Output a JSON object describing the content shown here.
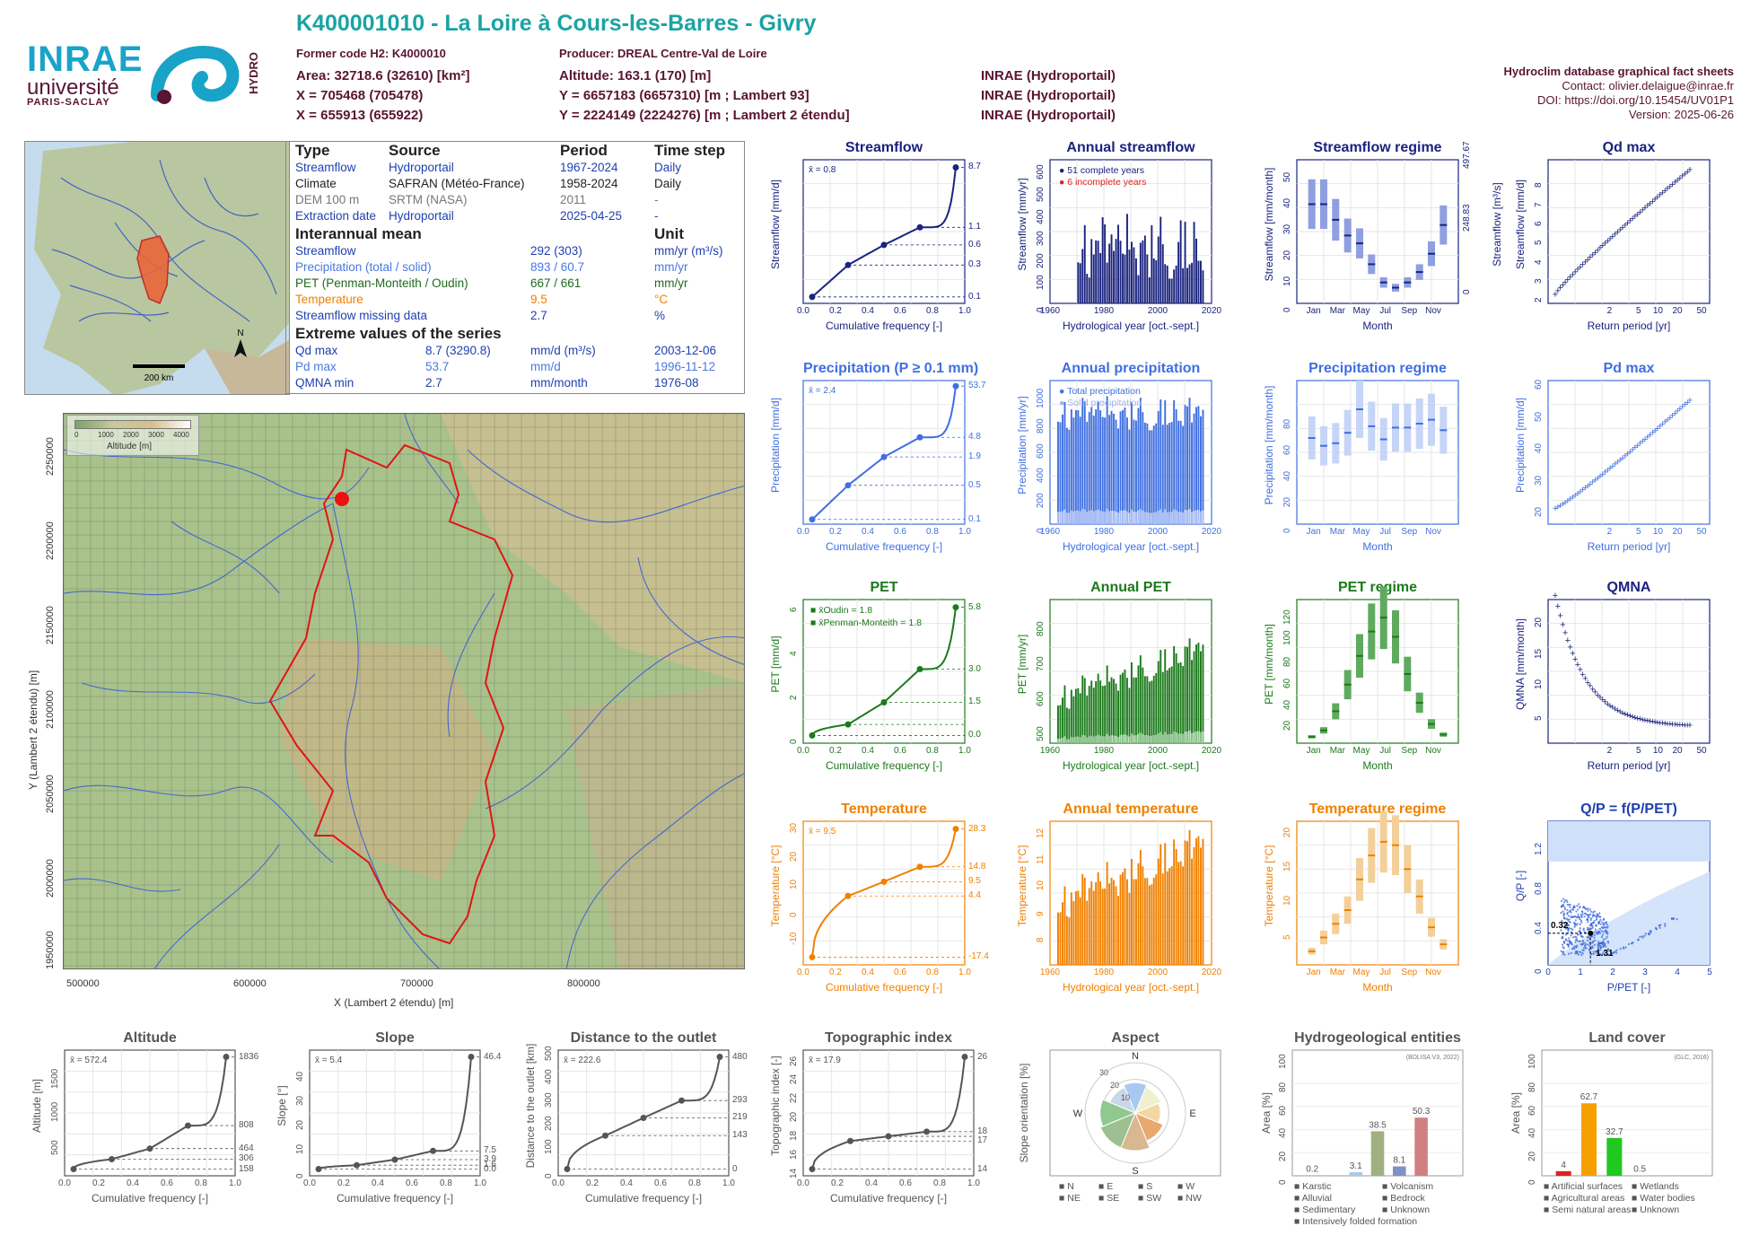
{
  "header": {
    "title": "K400001010 - La Loire à Cours-les-Barres - Givry",
    "former_code": "Former code H2: K4000010",
    "producer": "Producer: DREAL Centre-Val de Loire",
    "area": "Area: 32718.6 (32610) [km²]",
    "x1": "X = 705468 (705478)",
    "x2": "X = 655913 (655922)",
    "altitude": "Altitude: 163.1 (170) [m]",
    "y1": "Y = 6657183 (6657310) [m ; Lambert 93]",
    "y2": "Y = 2224149 (2224276) [m ; Lambert 2 étendu]",
    "src1": "INRAE (Hydroportail)",
    "src2": "INRAE (Hydroportail)",
    "src3": "INRAE (Hydroportail)",
    "db_title": "Hydroclim database graphical fact sheets",
    "contact": "Contact: olivier.delaigue@inrae.fr",
    "doi": "DOI: https://doi.org/10.15454/UV01P1",
    "version": "Version: 2025-06-26"
  },
  "logos": {
    "inrae": "INRAE",
    "universite": "université",
    "paris_saclay": "PARIS-SACLAY",
    "hydro": "HYDRO"
  },
  "minimap": {
    "scale": "200 km",
    "north": "N"
  },
  "info": {
    "h_type": "Type",
    "h_source": "Source",
    "h_period": "Period",
    "h_step": "Time step",
    "rows": [
      {
        "type": "Streamflow",
        "source": "Hydroportail",
        "period": "1967-2024",
        "step": "Daily"
      },
      {
        "type": "Climate",
        "source": "SAFRAN (Météo-France)",
        "period": "1958-2024",
        "step": "Daily"
      },
      {
        "type": "DEM 100 m",
        "source": "SRTM (NASA)",
        "period": "2011",
        "step": "-"
      },
      {
        "type": "Extraction date",
        "source": "Hydroportail",
        "period": "2025-04-25",
        "step": "-"
      }
    ],
    "h_mean": "Interannual mean",
    "h_unit": "Unit",
    "means": [
      {
        "name": "Streamflow",
        "value": "292 (303)",
        "unit": "mm/yr (m³/s)"
      },
      {
        "name": "Precipitation (total / solid)",
        "value": "893 / 60.7",
        "unit": "mm/yr"
      },
      {
        "name": "PET (Penman-Monteith / Oudin)",
        "value": "667 / 661",
        "unit": "mm/yr"
      },
      {
        "name": "Temperature",
        "value": "9.5",
        "unit": "°C"
      },
      {
        "name": "Streamflow missing data",
        "value": "2.7",
        "unit": "%"
      }
    ],
    "h_extreme": "Extreme values of the series",
    "extremes": [
      {
        "name": "Qd max",
        "value": "8.7 (3290.8)",
        "unit": "mm/d (m³/s)",
        "date": "2003-12-06"
      },
      {
        "name": "Pd max",
        "value": "53.7",
        "unit": "mm/d",
        "date": "1996-11-12"
      },
      {
        "name": "QMNA min",
        "value": "2.7",
        "unit": "mm/month",
        "date": "1976-08"
      }
    ]
  },
  "bigmap": {
    "legend_title": "Altitude [m]",
    "legend_ticks": [
      "0",
      "1000",
      "2000",
      "3000",
      "4000"
    ],
    "xlabel": "X (Lambert 2 étendu) [m]",
    "ylabel": "Y (Lambert 2 étendu) [m]",
    "xticks": [
      "500000",
      "600000",
      "700000",
      "800000"
    ],
    "yticks": [
      "2250000",
      "2200000",
      "2150000",
      "2100000",
      "2050000",
      "2000000",
      "1950000"
    ]
  },
  "colors": {
    "streamflow": "#1a237e",
    "precip": "#3f6fe0",
    "pet": "#1b7a1b",
    "temp": "#f08000",
    "grey": "#555555",
    "qp": "#1f3fb0"
  },
  "chart_data": [
    {
      "id": "streamflow_cdf",
      "type": "line",
      "title": "Streamflow",
      "xlabel": "Cumulative frequency [-]",
      "ylabel": "Streamflow [mm/d]",
      "mean_label": "x̄ = 0.8",
      "yscale": "log",
      "x": [
        0,
        0.25,
        0.5,
        0.75,
        1
      ],
      "y": [
        0.1,
        0.3,
        0.6,
        1.1,
        8.7
      ],
      "right_ticks": [
        "8.7",
        "1.1",
        "0.6",
        "0.3",
        "0.1"
      ]
    },
    {
      "id": "annual_streamflow",
      "type": "bar",
      "title": "Annual streamflow",
      "xlabel": "Hydrological year [oct.-sept.]",
      "ylabel": "Streamflow [mm/yr]",
      "legend": [
        "51 complete years",
        "6 incomplete years"
      ],
      "xticks": [
        "1960",
        "1980",
        "2000",
        "2020"
      ],
      "yticks": [
        "0",
        "100",
        "200",
        "300",
        "400",
        "500",
        "600"
      ]
    },
    {
      "id": "streamflow_regime",
      "type": "bar",
      "title": "Streamflow regime",
      "xlabel": "Month",
      "ylabel": "Streamflow [mm/month]",
      "right_ylabel": "Streamflow [m³/s]",
      "right_ticks": [
        "497.67",
        "248.83",
        "0"
      ],
      "categories": [
        "Jan",
        "Feb",
        "Mar",
        "Apr",
        "May",
        "Jun",
        "Jul",
        "Aug",
        "Sep",
        "Oct",
        "Nov",
        "Dec"
      ],
      "values": [
        38,
        38,
        32,
        26,
        23,
        15,
        8,
        6,
        8,
        12,
        19,
        30
      ],
      "yticks": [
        "0",
        "10",
        "20",
        "30",
        "40",
        "50"
      ]
    },
    {
      "id": "qd_max",
      "type": "scatter",
      "title": "Qd max",
      "xlabel": "Return period [yr]",
      "ylabel": "Streamflow [mm/d]",
      "xticks": [
        "2",
        "5",
        "10",
        "20",
        "50"
      ],
      "yticks": [
        "2",
        "3",
        "4",
        "5",
        "6",
        "7",
        "8"
      ]
    },
    {
      "id": "precip_cdf",
      "type": "line",
      "title": "Precipitation (P ≥ 0.1 mm)",
      "xlabel": "Cumulative frequency [-]",
      "ylabel": "Precipitation [mm/d]",
      "mean_label": "x̄ = 2.4",
      "yscale": "log",
      "x": [
        0,
        0.25,
        0.5,
        0.75,
        1
      ],
      "y": [
        0.1,
        0.5,
        1.9,
        4.8,
        53.7
      ],
      "right_ticks": [
        "53.7",
        "4.8",
        "1.9",
        "0.5",
        "0.1"
      ]
    },
    {
      "id": "annual_precip",
      "type": "bar",
      "title": "Annual precipitation",
      "xlabel": "Hydrological year [oct.-sept.]",
      "ylabel": "Precipitation [mm/yr]",
      "legend": [
        "Total precipitation",
        "Solid precipitation"
      ],
      "xticks": [
        "1960",
        "1980",
        "2000",
        "2020"
      ],
      "yticks": [
        "0",
        "200",
        "400",
        "600",
        "800",
        "1000"
      ]
    },
    {
      "id": "precip_regime",
      "type": "bar",
      "title": "Precipitation regime",
      "xlabel": "Month",
      "ylabel": "Precipitation [mm/month]",
      "categories": [
        "Jan",
        "Feb",
        "Mar",
        "Apr",
        "May",
        "Jun",
        "Jul",
        "Aug",
        "Sep",
        "Oct",
        "Nov",
        "Dec"
      ],
      "values": [
        66,
        60,
        62,
        70,
        88,
        75,
        65,
        74,
        74,
        77,
        80,
        72
      ],
      "yticks": [
        "0",
        "20",
        "40",
        "60",
        "80"
      ]
    },
    {
      "id": "pd_max",
      "type": "scatter",
      "title": "Pd max",
      "xlabel": "Return period [yr]",
      "ylabel": "Precipitation [mm/d]",
      "xticks": [
        "2",
        "5",
        "10",
        "20",
        "50"
      ],
      "yticks": [
        "20",
        "30",
        "40",
        "50",
        "60"
      ]
    },
    {
      "id": "pet_cdf",
      "type": "line",
      "title": "PET",
      "xlabel": "Cumulative frequency [-]",
      "ylabel": "PET [mm/d]",
      "legend": [
        "x̄Oudin = 1.8",
        "x̄Penman-Monteith = 1.8"
      ],
      "x": [
        0,
        0.25,
        0.5,
        0.75,
        1
      ],
      "y": [
        0.0,
        0.5,
        1.5,
        3.0,
        5.8
      ],
      "right_ticks": [
        "5.8",
        "3.0",
        "1.5",
        "0.0"
      ],
      "yticks": [
        "0",
        "2",
        "4",
        "6"
      ]
    },
    {
      "id": "annual_pet",
      "type": "bar",
      "title": "Annual PET",
      "xlabel": "Hydrological year [oct.-sept.]",
      "ylabel": "PET [mm/yr]",
      "xticks": [
        "1960",
        "1980",
        "2000",
        "2020"
      ],
      "yticks": [
        "500",
        "600",
        "700",
        "800"
      ]
    },
    {
      "id": "pet_regime",
      "type": "bar",
      "title": "PET regime",
      "xlabel": "Month",
      "ylabel": "PET [mm/month]",
      "categories": [
        "Jan",
        "Feb",
        "Mar",
        "Apr",
        "May",
        "Jun",
        "Jul",
        "Aug",
        "Sep",
        "Oct",
        "Nov",
        "Dec"
      ],
      "values": [
        6,
        12,
        30,
        55,
        82,
        105,
        118,
        100,
        65,
        38,
        18,
        8
      ],
      "yticks": [
        "20",
        "40",
        "60",
        "80",
        "100",
        "120"
      ]
    },
    {
      "id": "qmna",
      "type": "scatter",
      "title": "QMNA",
      "xlabel": "Return period [yr]",
      "ylabel": "QMNA [mm/month]",
      "xticks": [
        "2",
        "5",
        "10",
        "20",
        "50"
      ],
      "yticks": [
        "5",
        "10",
        "15",
        "20"
      ]
    },
    {
      "id": "temp_cdf",
      "type": "line",
      "title": "Temperature",
      "xlabel": "Cumulative frequency [-]",
      "ylabel": "Temperature [°C]",
      "mean_label": "x̄ = 9.5",
      "x": [
        0,
        0.25,
        0.5,
        0.75,
        1
      ],
      "y": [
        -17.4,
        4.4,
        9.5,
        14.8,
        28.3
      ],
      "right_ticks": [
        "28.3",
        "14.8",
        "9.5",
        "4.4",
        "-17.4"
      ],
      "yticks": [
        "-10",
        "0",
        "10",
        "20",
        "30"
      ]
    },
    {
      "id": "annual_temp",
      "type": "bar",
      "title": "Annual temperature",
      "xlabel": "Hydrological year [oct.-sept.]",
      "ylabel": "Temperature [°C]",
      "xticks": [
        "1960",
        "1980",
        "2000",
        "2020"
      ],
      "yticks": [
        "8",
        "9",
        "10",
        "11",
        "12"
      ]
    },
    {
      "id": "temp_regime",
      "type": "bar",
      "title": "Temperature regime",
      "xlabel": "Month",
      "ylabel": "Temperature [°C]",
      "categories": [
        "Jan",
        "Feb",
        "Mar",
        "Apr",
        "May",
        "Jun",
        "Jul",
        "Aug",
        "Sep",
        "Oct",
        "Nov",
        "Dec"
      ],
      "values": [
        2,
        4,
        6,
        8,
        12.5,
        16,
        18,
        17.5,
        14,
        10,
        5.5,
        3
      ],
      "yticks": [
        "5",
        "10",
        "15",
        "20"
      ]
    },
    {
      "id": "qp",
      "type": "scatter",
      "title": "Q/P = f(P/PET)",
      "xlabel": "P/PET [-]",
      "ylabel": "Q/P [-]",
      "annotations": [
        "0.32",
        "1.31"
      ],
      "xticks": [
        "0",
        "1",
        "2",
        "3",
        "4",
        "5"
      ],
      "yticks": [
        "0",
        "0.4",
        "0.8",
        "1.2"
      ]
    },
    {
      "id": "altitude_cdf",
      "type": "line",
      "title": "Altitude",
      "xlabel": "Cumulative frequency [-]",
      "ylabel": "Altitude [m]",
      "mean_label": "x̄ = 572.4",
      "x": [
        0,
        0.25,
        0.5,
        0.75,
        1
      ],
      "y": [
        158,
        306,
        464,
        808,
        1836
      ],
      "right_ticks": [
        "1836",
        "808",
        "464",
        "306",
        "158"
      ],
      "yticks": [
        "500",
        "1000",
        "1500"
      ]
    },
    {
      "id": "slope_cdf",
      "type": "line",
      "title": "Slope",
      "xlabel": "Cumulative frequency [-]",
      "ylabel": "Slope [°]",
      "mean_label": "x̄ = 5.4",
      "x": [
        0,
        0.25,
        0.5,
        0.75,
        1
      ],
      "y": [
        0.0,
        1.6,
        3.9,
        7.5,
        46.4
      ],
      "right_ticks": [
        "46.4",
        "7.5",
        "3.9",
        "1.6",
        "0.0"
      ],
      "yticks": [
        "0",
        "10",
        "20",
        "30",
        "40"
      ]
    },
    {
      "id": "distance_cdf",
      "type": "line",
      "title": "Distance to the outlet",
      "xlabel": "Cumulative frequency [-]",
      "ylabel": "Distance to the outlet [km]",
      "mean_label": "x̄ = 222.6",
      "x": [
        0,
        0.25,
        0.5,
        0.75,
        1
      ],
      "y": [
        0,
        143,
        219,
        293,
        480
      ],
      "right_ticks": [
        "480",
        "293",
        "219",
        "143",
        "0"
      ],
      "yticks": [
        "0",
        "100",
        "200",
        "300",
        "400",
        "500"
      ]
    },
    {
      "id": "topo_cdf",
      "type": "line",
      "title": "Topographic index",
      "xlabel": "Cumulative frequency [-]",
      "ylabel": "Topographic index [-]",
      "mean_label": "x̄ = 17.9",
      "x": [
        0,
        0.25,
        0.5,
        0.75,
        1
      ],
      "y": [
        14,
        17,
        17.5,
        18,
        26
      ],
      "right_ticks": [
        "26",
        "18",
        "17",
        "14"
      ],
      "yticks": [
        "14",
        "16",
        "18",
        "20",
        "22",
        "24",
        "26"
      ]
    },
    {
      "id": "aspect",
      "type": "pie",
      "title": "Aspect",
      "ylabel": "Slope orientation [%]",
      "categories": [
        "N",
        "NE",
        "E",
        "SE",
        "S",
        "SW",
        "W",
        "NW"
      ],
      "values": [
        12,
        11,
        10,
        12,
        15,
        15,
        14,
        11
      ],
      "compass": [
        "N",
        "E",
        "S",
        "W"
      ],
      "ring_labels": [
        "10",
        "20",
        "30"
      ]
    },
    {
      "id": "hydrogeology",
      "type": "bar",
      "title": "Hydrogeological entities",
      "ylabel": "Area [%]",
      "source": "(BDLISA V3, 2022)",
      "categories": [
        "Intensively folded formation",
        "Karstic",
        "Alluvial",
        "Sedimentary",
        "Volcanism",
        "Bedrock",
        "Unknown"
      ],
      "values": [
        0.2,
        0,
        3.1,
        38.5,
        8.1,
        50.3,
        0
      ],
      "labels": [
        "0.2",
        "3.1",
        "38.5",
        "8.1",
        "50.3"
      ],
      "yticks": [
        "0",
        "20",
        "40",
        "60",
        "80",
        "100"
      ],
      "legend": [
        "Karstic",
        "Volcanism",
        "Alluvial",
        "Bedrock",
        "Sedimentary",
        "Unknown",
        "Intensively folded formation"
      ]
    },
    {
      "id": "land_cover",
      "type": "bar",
      "title": "Land cover",
      "ylabel": "Area [%]",
      "source": "(GLC, 2016)",
      "categories": [
        "Artificial surfaces",
        "Agricultural areas",
        "Semi natural areas",
        "Wetlands",
        "Water bodies",
        "Unknown"
      ],
      "values": [
        4,
        62.7,
        32.7,
        0.5,
        0,
        0
      ],
      "labels": [
        "4",
        "62.7",
        "32.7",
        "0.5"
      ],
      "yticks": [
        "0",
        "20",
        "40",
        "60",
        "80",
        "100"
      ],
      "legend": [
        "Artificial surfaces",
        "Wetlands",
        "Agricultural areas",
        "Water bodies",
        "Semi natural areas",
        "Unknown"
      ]
    }
  ]
}
